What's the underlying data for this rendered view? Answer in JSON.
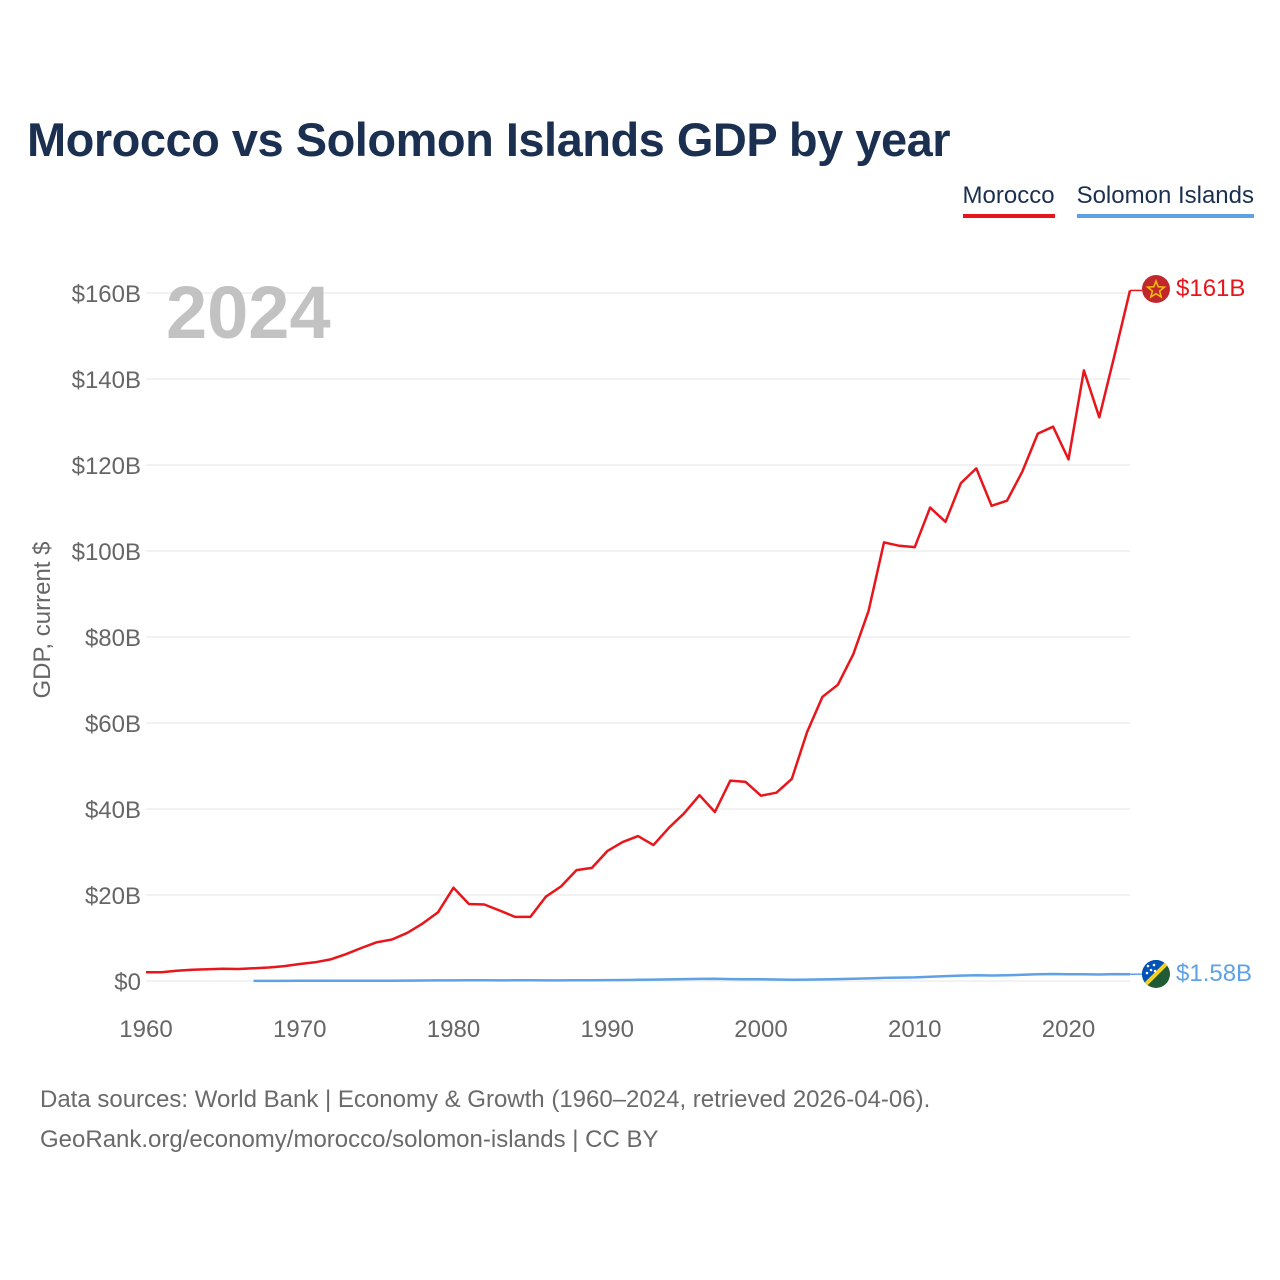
{
  "title": "Morocco vs Solomon Islands GDP by year",
  "legend": {
    "morocco": "Morocco",
    "solomon": "Solomon Islands"
  },
  "colors": {
    "morocco": "#e8151b",
    "solomon": "#5ea1e6",
    "title": "#1b3050",
    "grid": "#e6e6e6",
    "axis_text": "#666666",
    "year_text": "#c2c2c2"
  },
  "source": {
    "line1": "Data sources: World Bank | Economy & Growth (1960–2024, retrieved 2026-04-06).",
    "line2": "GeoRank.org/economy/morocco/solomon-islands | CC BY"
  },
  "chart_data": {
    "type": "line",
    "title": "Morocco vs Solomon Islands GDP by year",
    "ylabel": "GDP, current $",
    "xlabel": "",
    "year_label": "2024",
    "xlim": [
      1960,
      2024
    ],
    "ylim": [
      0,
      160
    ],
    "y_unit": "billion USD",
    "yticks": [
      0,
      20,
      40,
      60,
      80,
      100,
      120,
      140,
      160
    ],
    "ytick_labels": [
      "$0",
      "$20B",
      "$40B",
      "$60B",
      "$80B",
      "$100B",
      "$120B",
      "$140B",
      "$160B"
    ],
    "xticks": [
      1960,
      1970,
      1980,
      1990,
      2000,
      2010,
      2020
    ],
    "xtick_labels": [
      "1960",
      "1970",
      "1980",
      "1990",
      "2000",
      "2010",
      "2020"
    ],
    "grid": true,
    "series": [
      {
        "name": "Morocco",
        "end_label": "$161B",
        "x": [
          1960,
          1961,
          1962,
          1963,
          1964,
          1965,
          1966,
          1967,
          1968,
          1969,
          1970,
          1971,
          1972,
          1973,
          1974,
          1975,
          1976,
          1977,
          1978,
          1979,
          1980,
          1981,
          1982,
          1983,
          1984,
          1985,
          1986,
          1987,
          1988,
          1989,
          1990,
          1991,
          1992,
          1993,
          1994,
          1995,
          1996,
          1997,
          1998,
          1999,
          2000,
          2001,
          2002,
          2003,
          2004,
          2005,
          2006,
          2007,
          2008,
          2009,
          2010,
          2011,
          2012,
          2013,
          2014,
          2015,
          2016,
          2017,
          2018,
          2019,
          2020,
          2021,
          2022,
          2023,
          2024
        ],
        "values": [
          2.04,
          2.03,
          2.37,
          2.62,
          2.75,
          2.83,
          2.79,
          2.95,
          3.14,
          3.46,
          3.96,
          4.36,
          5.02,
          6.24,
          7.68,
          8.99,
          9.64,
          11.2,
          13.4,
          16.0,
          21.7,
          17.9,
          17.8,
          16.4,
          14.9,
          14.9,
          19.6,
          22.0,
          25.8,
          26.3,
          30.2,
          32.3,
          33.7,
          31.6,
          35.6,
          39.0,
          43.2,
          39.3,
          46.6,
          46.3,
          43.1,
          43.8,
          47.0,
          57.9,
          66.1,
          68.9,
          76.0,
          86.1,
          102.0,
          101.2,
          100.9,
          110.1,
          106.8,
          115.8,
          119.2,
          110.5,
          111.7,
          118.5,
          127.3,
          128.9,
          121.3,
          142.0,
          131.1,
          145.6,
          160.6
        ]
      },
      {
        "name": "Solomon Islands",
        "end_label": "$1.58B",
        "x": [
          1967,
          1968,
          1969,
          1970,
          1971,
          1972,
          1973,
          1974,
          1975,
          1976,
          1977,
          1978,
          1979,
          1980,
          1981,
          1982,
          1983,
          1984,
          1985,
          1986,
          1987,
          1988,
          1989,
          1990,
          1991,
          1992,
          1993,
          1994,
          1995,
          1996,
          1997,
          1998,
          1999,
          2000,
          2001,
          2002,
          2003,
          2004,
          2005,
          2006,
          2007,
          2008,
          2009,
          2010,
          2011,
          2012,
          2013,
          2014,
          2015,
          2016,
          2017,
          2018,
          2019,
          2020,
          2021,
          2022,
          2023,
          2024
        ],
        "values": [
          0.03,
          0.03,
          0.03,
          0.04,
          0.04,
          0.04,
          0.05,
          0.07,
          0.07,
          0.07,
          0.09,
          0.11,
          0.13,
          0.15,
          0.16,
          0.16,
          0.15,
          0.17,
          0.16,
          0.14,
          0.15,
          0.18,
          0.18,
          0.21,
          0.23,
          0.27,
          0.32,
          0.38,
          0.44,
          0.49,
          0.53,
          0.45,
          0.43,
          0.41,
          0.36,
          0.31,
          0.33,
          0.38,
          0.45,
          0.52,
          0.61,
          0.71,
          0.78,
          0.84,
          1.01,
          1.13,
          1.26,
          1.33,
          1.29,
          1.36,
          1.45,
          1.59,
          1.62,
          1.55,
          1.59,
          1.52,
          1.6,
          1.58
        ]
      }
    ]
  }
}
